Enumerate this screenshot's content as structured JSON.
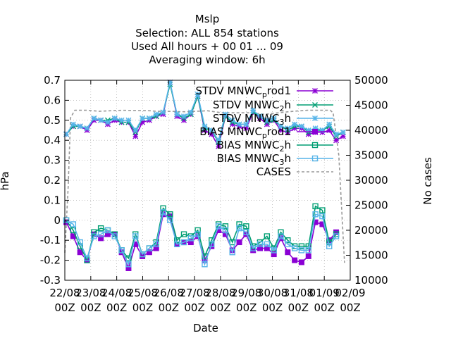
{
  "chart_data": {
    "type": "line",
    "title_lines": [
      "Mslp",
      "Selection: ALL    854 stations",
      "Used  All hours  + 00 01 ... 09",
      "Averaging window:  6h"
    ],
    "xlabel": "Date",
    "ylabel": "hPa",
    "y2label": "No cases",
    "ylim": [
      -0.3,
      0.7
    ],
    "y2lim": [
      10000,
      50000
    ],
    "xlim": [
      0,
      10
    ],
    "yticks": [
      "0.7",
      "0.6",
      "0.5",
      "0.4",
      "0.3",
      "0.2",
      "0.1",
      "0",
      "-0.1",
      "-0.2",
      "-0.3"
    ],
    "y2ticks": [
      "50000",
      "45000",
      "40000",
      "35000",
      "30000",
      "25000",
      "20000",
      "15000",
      "10000"
    ],
    "xticks": [
      {
        "date": "22/08",
        "time": "00Z"
      },
      {
        "date": "23/08",
        "time": "00Z"
      },
      {
        "date": "24/08",
        "time": "00Z"
      },
      {
        "date": "25/08",
        "time": "00Z"
      },
      {
        "date": "26/08",
        "time": "00Z"
      },
      {
        "date": "27/08",
        "time": "00Z"
      },
      {
        "date": "28/08",
        "time": "00Z"
      },
      {
        "date": "29/08",
        "time": "00Z"
      },
      {
        "date": "30/08",
        "time": "00Z"
      },
      {
        "date": "31/08",
        "time": "00Z"
      },
      {
        "date": "01/09",
        "time": "00Z"
      },
      {
        "date": "02/09",
        "time": "00Z"
      }
    ],
    "grid": true,
    "legend_position": "top-right",
    "series": [
      {
        "name": "STDV MNWC_prod1",
        "main": "STDV MNWC",
        "sub": "p",
        "rest": "rod1",
        "color": "#8b00d4",
        "marker": "star",
        "axis": "y1",
        "values": [
          0.43,
          0.47,
          0.47,
          0.45,
          0.5,
          0.5,
          0.48,
          0.5,
          0.49,
          0.49,
          0.42,
          0.49,
          0.5,
          0.52,
          0.53,
          0.69,
          0.52,
          0.5,
          0.53,
          0.62,
          0.45,
          0.43,
          0.37,
          0.52,
          0.48,
          0.47,
          0.46,
          0.54,
          0.51,
          0.48,
          0.5,
          0.45,
          0.44,
          0.46,
          0.46,
          0.43,
          0.44,
          0.44,
          0.45,
          0.4,
          0.42
        ]
      },
      {
        "name": "STDV MNWC_2h",
        "main": "STDV MNWC",
        "sub": "2",
        "rest": "h",
        "color": "#009e73",
        "marker": "x",
        "axis": "y1",
        "values": [
          0.43,
          0.47,
          0.47,
          0.46,
          0.51,
          0.5,
          0.5,
          0.51,
          0.49,
          0.49,
          0.44,
          0.51,
          0.51,
          0.52,
          0.54,
          0.68,
          0.53,
          0.51,
          0.53,
          0.62,
          0.46,
          0.45,
          0.39,
          0.52,
          0.49,
          0.48,
          0.48,
          0.54,
          0.52,
          0.49,
          0.5,
          0.47,
          0.45,
          0.47,
          0.47,
          0.44,
          0.45,
          0.45,
          0.47,
          0.42,
          0.44
        ]
      },
      {
        "name": "STDV MNWC_3h",
        "main": "STDV MNWC",
        "sub": "3",
        "rest": "h",
        "color": "#56b4e9",
        "marker": "star",
        "axis": "y1",
        "values": [
          0.43,
          0.48,
          0.47,
          0.46,
          0.51,
          0.5,
          0.49,
          0.51,
          0.5,
          0.5,
          0.45,
          0.51,
          0.51,
          0.53,
          0.54,
          0.69,
          0.53,
          0.52,
          0.54,
          0.63,
          0.47,
          0.45,
          0.4,
          0.53,
          0.5,
          0.48,
          0.48,
          0.55,
          0.52,
          0.5,
          0.51,
          0.47,
          0.46,
          0.48,
          0.47,
          0.45,
          0.46,
          0.45,
          0.48,
          0.43,
          0.44
        ]
      },
      {
        "name": "BIAS MNWC_prod1",
        "main": "BIAS MNWC",
        "sub": "p",
        "rest": "rod1",
        "color": "#8b00d4",
        "marker": "filled-square",
        "axis": "y1",
        "values": [
          -0.01,
          -0.08,
          -0.16,
          -0.2,
          -0.07,
          -0.09,
          -0.07,
          -0.07,
          -0.16,
          -0.24,
          -0.12,
          -0.18,
          -0.16,
          -0.14,
          0.03,
          0.02,
          -0.12,
          -0.11,
          -0.11,
          -0.08,
          -0.2,
          -0.13,
          -0.05,
          -0.07,
          -0.15,
          -0.11,
          -0.07,
          -0.15,
          -0.14,
          -0.14,
          -0.17,
          -0.09,
          -0.16,
          -0.2,
          -0.21,
          -0.18,
          -0.01,
          -0.02,
          -0.1,
          -0.06
        ]
      },
      {
        "name": "BIAS MNWC_2h",
        "main": "BIAS MNWC",
        "sub": "2",
        "rest": "h",
        "color": "#009e73",
        "marker": "square",
        "axis": "y1",
        "values": [
          0.0,
          -0.05,
          -0.13,
          -0.2,
          -0.06,
          -0.04,
          -0.05,
          -0.07,
          -0.15,
          -0.19,
          -0.07,
          -0.17,
          -0.14,
          -0.11,
          0.06,
          0.03,
          -0.1,
          -0.07,
          -0.08,
          -0.05,
          -0.18,
          -0.1,
          -0.02,
          -0.03,
          -0.11,
          -0.02,
          -0.03,
          -0.13,
          -0.11,
          -0.08,
          -0.14,
          -0.06,
          -0.1,
          -0.13,
          -0.13,
          -0.13,
          0.07,
          0.05,
          -0.11,
          -0.07
        ]
      },
      {
        "name": "BIAS MNWC_3h",
        "main": "BIAS MNWC",
        "sub": "3",
        "rest": "h",
        "color": "#56b4e9",
        "marker": "square",
        "axis": "y1",
        "values": [
          0.0,
          -0.02,
          -0.11,
          -0.19,
          -0.08,
          -0.07,
          -0.05,
          -0.08,
          -0.15,
          -0.22,
          -0.08,
          -0.17,
          -0.14,
          -0.12,
          0.04,
          0.0,
          -0.12,
          -0.11,
          -0.09,
          -0.07,
          -0.22,
          -0.12,
          -0.03,
          -0.05,
          -0.16,
          -0.04,
          -0.06,
          -0.14,
          -0.12,
          -0.12,
          -0.15,
          -0.08,
          -0.12,
          -0.14,
          -0.15,
          -0.15,
          0.03,
          0.02,
          -0.13,
          -0.08
        ]
      },
      {
        "name": "CASES",
        "main": "CASES",
        "sub": "",
        "rest": "",
        "color": "#999999",
        "marker": "none",
        "dashed": true,
        "axis": "y2",
        "x": [
          0.0,
          0.12,
          0.2,
          0.35,
          0.6,
          0.8,
          1.2,
          2.0,
          3.0,
          3.2,
          3.6,
          4.2,
          5.0,
          5.5,
          6.0,
          6.5,
          7.0,
          7.5,
          8.0,
          8.5,
          9.0,
          9.3,
          9.4,
          9.6,
          9.8
        ],
        "values": [
          15500,
          29000,
          42500,
          44000,
          44000,
          44000,
          43800,
          44000,
          43900,
          43800,
          43800,
          43700,
          43900,
          43500,
          43500,
          43500,
          43200,
          43500,
          43800,
          44000,
          44000,
          44000,
          43500,
          35000,
          13500
        ]
      }
    ]
  }
}
